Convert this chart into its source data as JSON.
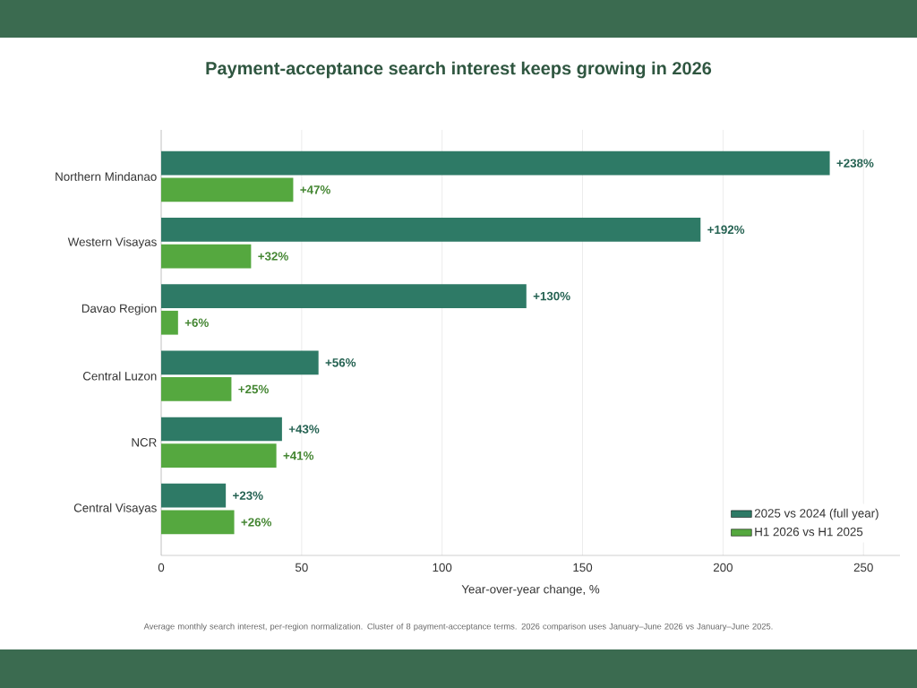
{
  "chart_data": {
    "type": "bar",
    "orientation": "horizontal",
    "title": "Payment-acceptance search interest keeps growing in 2026",
    "xlabel": "Year-over-year change, %",
    "categories": [
      "Northern Mindanao",
      "Western Visayas",
      "Davao Region",
      "Central Luzon",
      "NCR",
      "Central Visayas"
    ],
    "series": [
      {
        "name": "2025 vs 2024 (full year)",
        "color": "#2e7a66",
        "values": [
          238,
          192,
          130,
          56,
          43,
          23
        ],
        "value_labels": [
          "+238%",
          "+192%",
          "+130%",
          "+56%",
          "+43%",
          "+23%"
        ]
      },
      {
        "name": "H1 2026 vs H1 2025",
        "color": "#55a83f",
        "values": [
          47,
          32,
          6,
          25,
          41,
          26
        ],
        "value_labels": [
          "+47%",
          "+32%",
          "+6%",
          "+25%",
          "+41%",
          "+26%"
        ]
      }
    ],
    "xlim": [
      0,
      263
    ],
    "xticks": [
      0,
      50,
      100,
      150,
      200,
      250
    ],
    "grid": "x",
    "legend": "bottom right",
    "annotations": [
      "Average monthly search interest, per-region normalization. Cluster of 8 payment-acceptance terms. 2026 comparison uses January–June 2026 vs January–June 2025."
    ]
  }
}
